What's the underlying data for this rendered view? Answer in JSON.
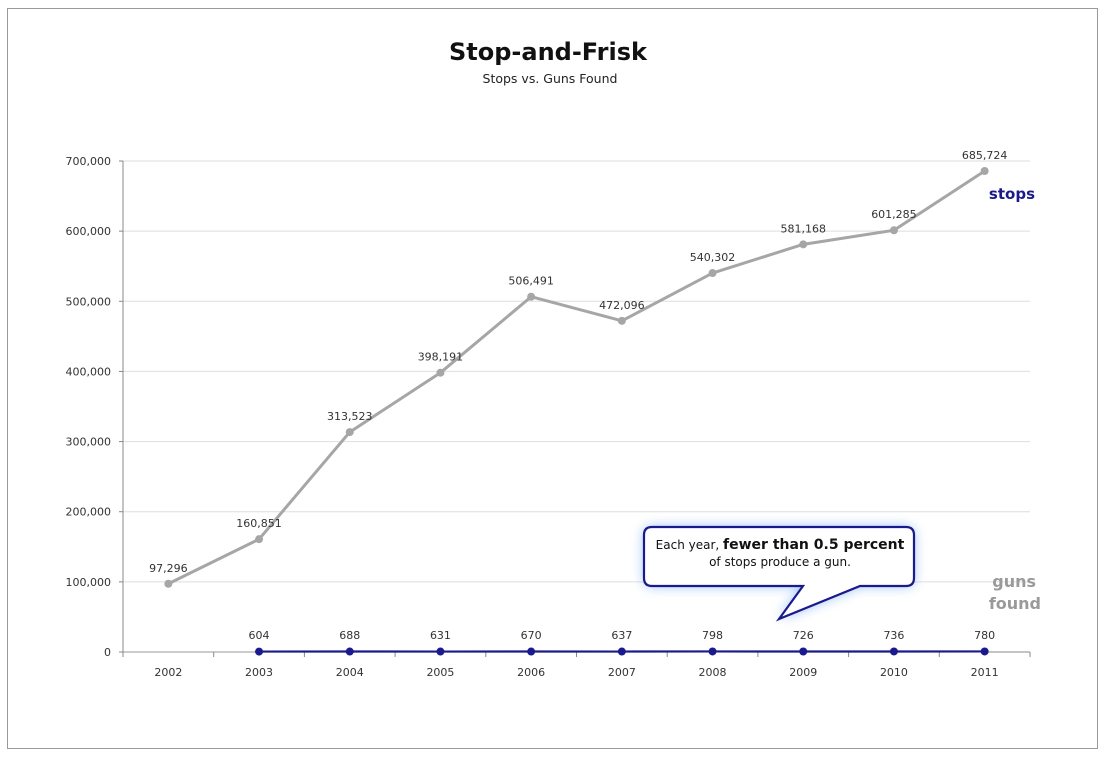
{
  "chart_data": {
    "type": "line",
    "title": "Stop-and-Frisk",
    "subtitle": "Stops vs. Guns Found",
    "categories": [
      "2002",
      "2003",
      "2004",
      "2005",
      "2006",
      "2007",
      "2008",
      "2009",
      "2010",
      "2011"
    ],
    "ylim": [
      0,
      700000
    ],
    "yticks": [
      0,
      100000,
      200000,
      300000,
      400000,
      500000,
      600000,
      700000
    ],
    "ytick_labels": [
      "0",
      "100,000",
      "200,000",
      "300,000",
      "400,000",
      "500,000",
      "600,000",
      "700,000"
    ],
    "grid": true,
    "series": [
      {
        "name": "stops",
        "color": "#a6a6a6",
        "values": [
          97296,
          160851,
          313523,
          398191,
          506491,
          472096,
          540302,
          581168,
          601285,
          685724
        ],
        "labels": [
          "97,296",
          "160,851",
          "313,523",
          "398,191",
          "506,491",
          "472,096",
          "540,302",
          "581,168",
          "601,285",
          "685,724"
        ]
      },
      {
        "name": "guns found",
        "color": "#1a1a8c",
        "values": [
          null,
          604,
          688,
          631,
          670,
          637,
          798,
          726,
          736,
          780
        ],
        "labels": [
          "",
          "604",
          "688",
          "631",
          "670",
          "637",
          "798",
          "726",
          "736",
          "780"
        ]
      }
    ],
    "series_label_stops": "stops",
    "series_label_guns_1": "guns",
    "series_label_guns_2": "found",
    "callout": {
      "prefix": "Each year,",
      "bold": "fewer than 0.5 percent",
      "line2": "of stops produce a gun."
    }
  }
}
